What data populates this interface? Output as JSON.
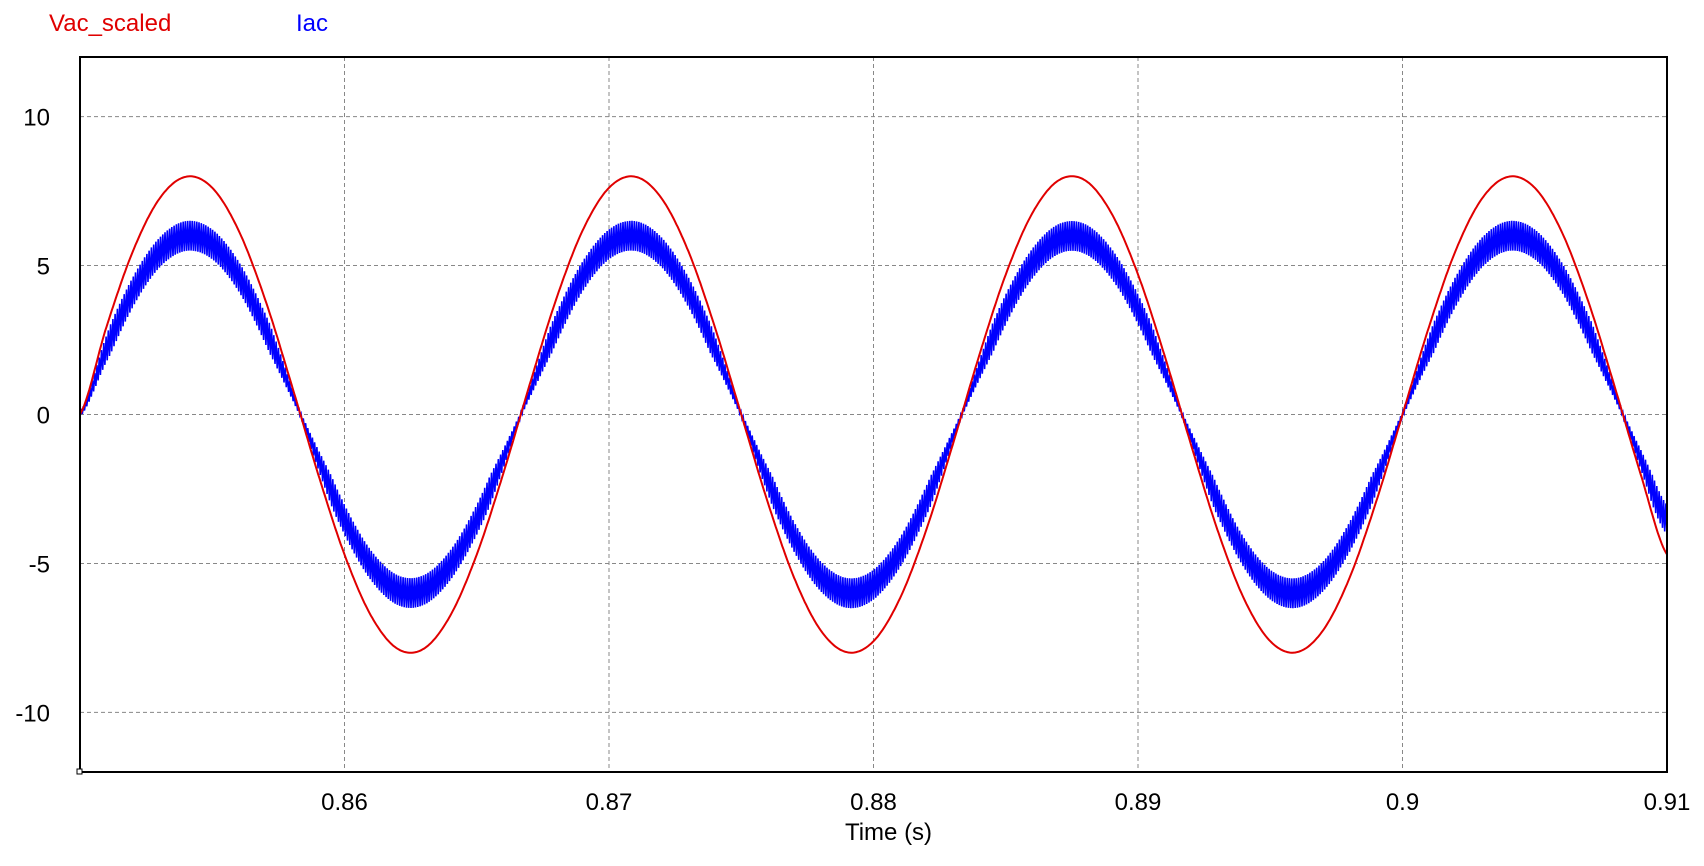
{
  "chart_data": {
    "type": "line",
    "title": "",
    "xlabel": "Time (s)",
    "ylabel": "",
    "xlim": [
      0.85,
      0.91
    ],
    "ylim": [
      -12,
      12
    ],
    "grid": true,
    "legend_position": "top-left",
    "x_ticks": [
      "0.86",
      "0.87",
      "0.88",
      "0.89",
      "0.9",
      "0.91"
    ],
    "x_tick_values": [
      0.86,
      0.87,
      0.88,
      0.89,
      0.9,
      0.91
    ],
    "y_ticks": [
      "10",
      "5",
      "0",
      "-5",
      "-10"
    ],
    "y_tick_values": [
      10,
      5,
      0,
      -5,
      -10
    ],
    "x_step": 0.001,
    "x_start": 0.85,
    "series": [
      {
        "name": "Vac_scaled",
        "color": "#e00000",
        "values": [
          0,
          2.94,
          5.48,
          7.24,
          7.98,
          7.61,
          6.17,
          3.86,
          1.0,
          -1.99,
          -4.7,
          -6.75,
          -7.86,
          -7.86,
          -6.75,
          -4.7,
          -1.99,
          1.0,
          3.86,
          6.17,
          7.61,
          7.98,
          7.24,
          5.48,
          2.94,
          0,
          -2.94,
          -5.48,
          -7.24,
          -7.98,
          -7.61,
          -6.17,
          -3.86,
          -1.0,
          1.99,
          4.7,
          6.75,
          7.86,
          7.86,
          6.75,
          4.7,
          1.99,
          -1.0,
          -3.86,
          -6.17,
          -7.61,
          -7.98,
          -7.24,
          -5.48,
          -2.94,
          0,
          2.94,
          5.48,
          7.24,
          7.98,
          7.61,
          6.17,
          3.86,
          1.0,
          -1.99,
          -4.7
        ]
      },
      {
        "name": "Iac",
        "color": "#0000ff",
        "ripple_peak_to_peak": 1.0,
        "values": [
          0,
          2.21,
          4.11,
          5.43,
          5.99,
          5.71,
          4.63,
          2.89,
          0.75,
          -1.49,
          -3.53,
          -5.06,
          -5.89,
          -5.89,
          -5.06,
          -3.53,
          -1.49,
          0.75,
          2.89,
          4.63,
          5.71,
          5.99,
          5.43,
          4.11,
          2.21,
          0,
          -2.21,
          -4.11,
          -5.43,
          -5.99,
          -5.71,
          -4.63,
          -2.89,
          -0.75,
          1.49,
          3.53,
          5.06,
          5.89,
          5.89,
          5.06,
          3.53,
          1.49,
          -0.75,
          -2.89,
          -4.63,
          -5.71,
          -5.99,
          -5.43,
          -4.11,
          -2.21,
          0,
          2.21,
          4.11,
          5.43,
          5.99,
          5.71,
          4.63,
          2.89,
          0.75,
          -1.49,
          -3.53
        ]
      }
    ]
  }
}
